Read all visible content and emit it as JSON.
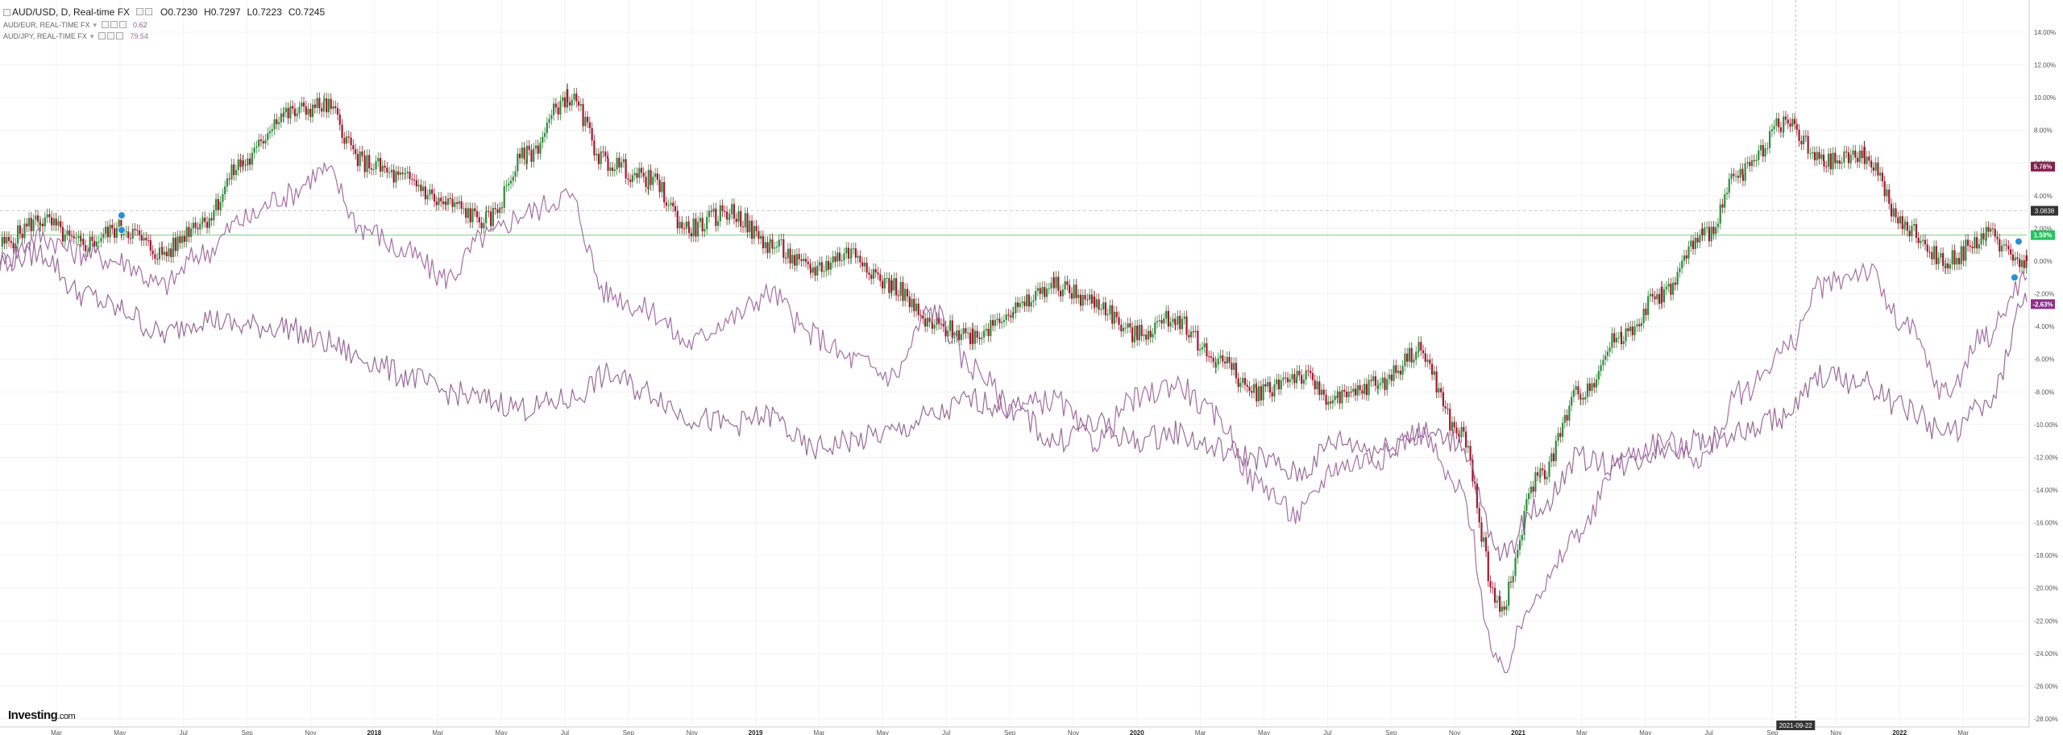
{
  "legend": {
    "main_symbol": "AUD/USD, D, Real-time FX",
    "open": "O0.7230",
    "high": "H0.7297",
    "low": "L0.7223",
    "close": "C0.7245",
    "overlays": [
      {
        "label": "AUD/EUR, REAL-TIME FX",
        "value": "0.62",
        "color": "#8e5a8e"
      },
      {
        "label": "AUD/JPY, REAL-TIME FX",
        "value": "79.54",
        "color": "#a06aa0"
      }
    ]
  },
  "brand": {
    "name": "Investing",
    "suffix": ".com"
  },
  "chart_data": {
    "type": "line",
    "y_unit": "%",
    "ylim": [
      -28,
      14
    ],
    "y_ticks": [
      "14.00%",
      "12.00%",
      "10.00%",
      "8.00%",
      "6.00%",
      "4.00%",
      "2.00%",
      "0.00%",
      "-2.00%",
      "-4.00%",
      "-6.00%",
      "-8.00%",
      "-10.00%",
      "-12.00%",
      "-14.00%",
      "-16.00%",
      "-18.00%",
      "-20.00%",
      "-22.00%",
      "-24.00%",
      "-26.00%",
      "-28.00%"
    ],
    "x_ticks": [
      "Mar",
      "May",
      "Jul",
      "Sep",
      "Nov",
      "2018",
      "Mar",
      "May",
      "Jul",
      "Sep",
      "Nov",
      "2019",
      "Mar",
      "May",
      "Jul",
      "Sep",
      "Nov",
      "2020",
      "Mar",
      "May",
      "Jul",
      "Sep",
      "Nov",
      "2021",
      "Mar",
      "May",
      "Jul",
      "Sep",
      "Nov",
      "2022",
      "Mar"
    ],
    "crosshair_x_label": "2021-09-22",
    "price_label": "3.0838",
    "markers": [
      {
        "label": "5.78%",
        "value": 5.78,
        "color": "#8b1a4a"
      },
      {
        "label": "1.59%",
        "value": 1.59,
        "color": "#22c55e"
      },
      {
        "label": "-2.63%",
        "value": -2.63,
        "color": "#8e2f8e"
      }
    ],
    "series": [
      {
        "name": "AUD/USD",
        "style": "candles",
        "up_color": "#2e8b3a",
        "down_color": "#a3172f",
        "x": [
          0,
          2,
          4,
          6,
          8,
          10,
          12,
          14,
          16,
          18,
          20,
          22,
          24,
          26,
          28,
          30,
          32,
          34,
          36,
          38,
          40,
          42,
          44,
          46,
          48,
          50,
          52,
          54,
          56,
          58,
          60,
          62,
          64,
          66,
          68,
          70,
          72,
          74,
          76,
          78,
          80,
          82,
          84,
          86,
          88,
          90,
          92,
          94,
          96,
          98,
          100
        ],
        "values": [
          1.0,
          2.5,
          1.0,
          2.0,
          0.5,
          2.5,
          6.0,
          9.0,
          9.5,
          6.0,
          5.0,
          3.5,
          2.5,
          6.5,
          10.0,
          6.0,
          5.0,
          2.0,
          3.0,
          1.0,
          -0.5,
          0.5,
          -1.5,
          -4.0,
          -4.5,
          -3.0,
          -1.5,
          -2.5,
          -4.5,
          -3.5,
          -6.0,
          -8.0,
          -7.0,
          -8.5,
          -7.5,
          -5.5,
          -10.5,
          -21.0,
          -13.0,
          -8.0,
          -4.5,
          -2.0,
          1.5,
          5.5,
          8.5,
          6.0,
          6.5,
          2.0,
          0.0,
          1.5,
          0.0
        ]
      },
      {
        "name": "AUD/EUR",
        "style": "line",
        "color": "#9b5f9b",
        "x": [
          0,
          2,
          4,
          6,
          8,
          10,
          12,
          14,
          16,
          18,
          20,
          22,
          24,
          26,
          28,
          30,
          32,
          34,
          36,
          38,
          40,
          42,
          44,
          46,
          48,
          50,
          52,
          54,
          56,
          58,
          60,
          62,
          64,
          66,
          68,
          70,
          72,
          74,
          76,
          78,
          80,
          82,
          84,
          86,
          88,
          90,
          92,
          94,
          96,
          98,
          100
        ],
        "values": [
          0.0,
          1.5,
          0.5,
          0.0,
          -1.5,
          0.5,
          2.5,
          4.0,
          5.5,
          2.0,
          0.5,
          -1.0,
          1.5,
          3.0,
          4.0,
          -2.0,
          -3.0,
          -5.0,
          -3.5,
          -2.0,
          -4.5,
          -6.0,
          -7.0,
          -3.0,
          -6.5,
          -9.0,
          -8.5,
          -11.0,
          -8.5,
          -7.5,
          -9.5,
          -13.5,
          -15.5,
          -12.5,
          -12.0,
          -10.5,
          -14.0,
          -25.0,
          -20.0,
          -16.5,
          -12.0,
          -11.0,
          -12.0,
          -8.0,
          -5.5,
          -1.5,
          -0.5,
          -4.0,
          -8.0,
          -4.5,
          -1.0
        ]
      },
      {
        "name": "AUD/JPY",
        "style": "line",
        "color": "#8e5a8e",
        "x": [
          0,
          2,
          4,
          6,
          8,
          10,
          12,
          14,
          16,
          18,
          20,
          22,
          24,
          26,
          28,
          30,
          32,
          34,
          36,
          38,
          40,
          42,
          44,
          46,
          48,
          50,
          52,
          54,
          56,
          58,
          60,
          62,
          64,
          66,
          68,
          70,
          72,
          74,
          76,
          78,
          80,
          82,
          84,
          86,
          88,
          90,
          92,
          94,
          96,
          98,
          100
        ],
        "values": [
          0.0,
          0.5,
          -2.0,
          -3.0,
          -4.5,
          -3.5,
          -4.0,
          -4.0,
          -5.0,
          -6.0,
          -7.0,
          -8.0,
          -8.5,
          -9.0,
          -8.5,
          -7.0,
          -8.0,
          -9.5,
          -10.0,
          -9.5,
          -11.5,
          -11.0,
          -10.5,
          -9.5,
          -8.5,
          -9.0,
          -11.0,
          -10.0,
          -11.0,
          -10.5,
          -11.5,
          -12.0,
          -13.0,
          -11.0,
          -11.5,
          -10.5,
          -11.0,
          -18.0,
          -15.0,
          -12.0,
          -12.5,
          -11.5,
          -11.0,
          -10.5,
          -9.5,
          -7.0,
          -7.5,
          -9.0,
          -10.5,
          -9.0,
          -2.5
        ]
      }
    ]
  }
}
